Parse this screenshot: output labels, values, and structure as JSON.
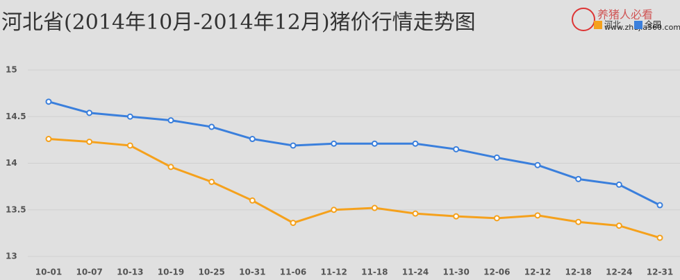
{
  "chart_data": {
    "type": "line",
    "title": "河北省(2014年10月-2014年12月)猪价行情走势图",
    "watermark": [
      "养猪人必看",
      "www.zhujia360.com"
    ],
    "categories": [
      "10-01",
      "10-07",
      "10-13",
      "10-19",
      "10-25",
      "10-31",
      "11-06",
      "11-12",
      "11-18",
      "11-24",
      "11-30",
      "12-06",
      "12-12",
      "12-18",
      "12-24",
      "12-31"
    ],
    "series": [
      {
        "name": "河北",
        "color": "#f5a11c",
        "values": [
          14.26,
          14.23,
          14.19,
          13.96,
          13.8,
          13.6,
          13.36,
          13.5,
          13.52,
          13.46,
          13.43,
          13.41,
          13.44,
          13.37,
          13.33,
          13.2
        ]
      },
      {
        "name": "全国",
        "color": "#3a7fdc",
        "values": [
          14.66,
          14.54,
          14.5,
          14.46,
          14.39,
          14.26,
          14.19,
          14.21,
          14.21,
          14.21,
          14.15,
          14.06,
          13.98,
          13.83,
          13.77,
          13.55
        ]
      }
    ],
    "ylim": [
      13,
      15
    ],
    "yticks": [
      13,
      13.5,
      14,
      14.5,
      15
    ],
    "grid": true,
    "legend": "top-right"
  }
}
